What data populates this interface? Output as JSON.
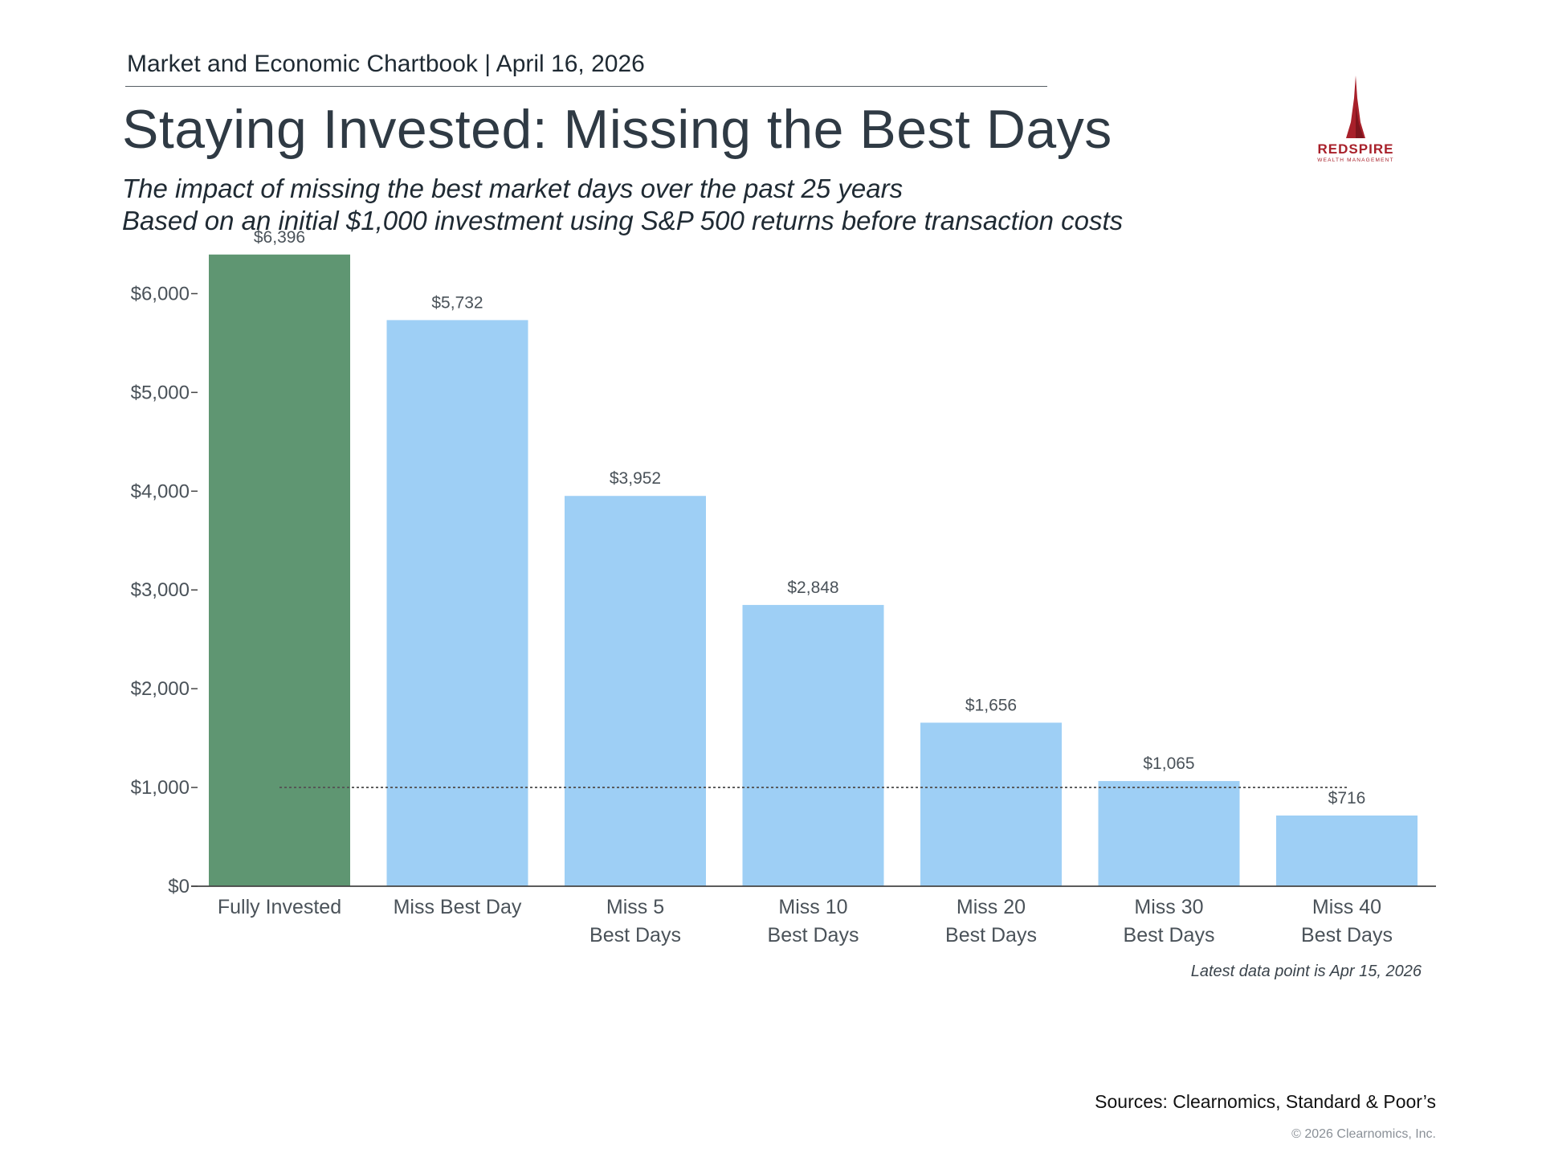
{
  "header": {
    "line": "Market and Economic Chartbook | April 16, 2026",
    "title": "Staying Invested: Missing the Best Days",
    "subtitle_1": "The impact of missing the best market days over the past 25 years",
    "subtitle_2": "Based on an initial $1,000 investment using S&P 500 returns before transaction costs"
  },
  "logo": {
    "name": "REDSPIRE",
    "tagline": "WEALTH MANAGEMENT",
    "icon": "spire-icon",
    "color": "#a8202a"
  },
  "chart_data": {
    "type": "bar",
    "categories": [
      [
        "Fully Invested"
      ],
      [
        "Miss Best Day"
      ],
      [
        "Miss 5",
        "Best Days"
      ],
      [
        "Miss 10",
        "Best Days"
      ],
      [
        "Miss 20",
        "Best Days"
      ],
      [
        "Miss 30",
        "Best Days"
      ],
      [
        "Miss 40",
        "Best Days"
      ]
    ],
    "values": [
      6396,
      5732,
      3952,
      2848,
      1656,
      1065,
      716
    ],
    "value_labels": [
      "$6,396",
      "$5,732",
      "$3,952",
      "$2,848",
      "$1,656",
      "$1,065",
      "$716"
    ],
    "colors": [
      "#5f9672",
      "#9ecff5",
      "#9ecff5",
      "#9ecff5",
      "#9ecff5",
      "#9ecff5",
      "#9ecff5"
    ],
    "ylim": [
      0,
      6500
    ],
    "yticks": [
      0,
      1000,
      2000,
      3000,
      4000,
      5000,
      6000
    ],
    "ytick_labels": [
      "$0",
      "$1,000",
      "$2,000",
      "$3,000",
      "$4,000",
      "$5,000",
      "$6,000"
    ],
    "reference_line": {
      "value": 1000,
      "style": "dotted"
    },
    "grid": false,
    "legend": "none"
  },
  "footer": {
    "note": "Latest data point is Apr 15, 2026",
    "sources": "Sources: Clearnomics, Standard & Poor’s",
    "copyright": "© 2026 Clearnomics, Inc."
  }
}
